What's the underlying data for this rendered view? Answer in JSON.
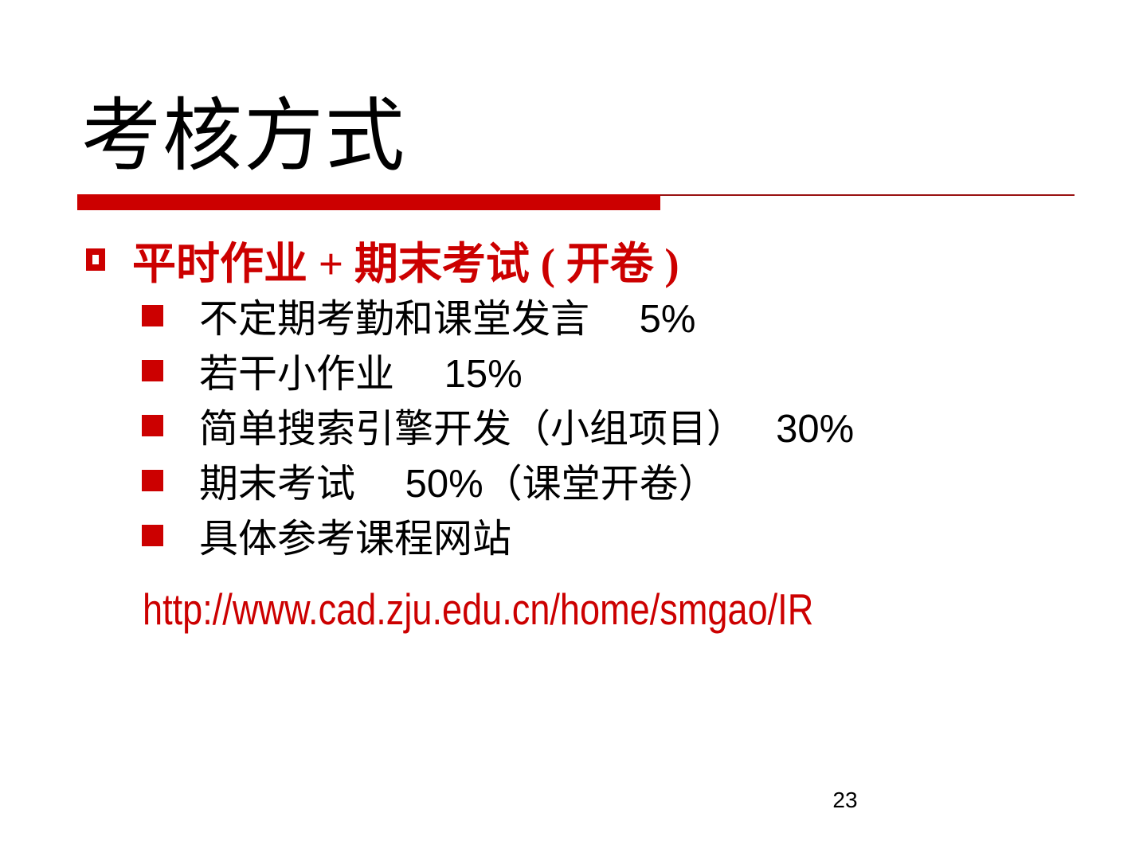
{
  "slide": {
    "title": "考核方式",
    "heading": "平时作业 + 期末考试 ( 开卷 )",
    "bullets": [
      "不定期考勤和课堂发言　 5%",
      "若干小作业　 15%",
      "简单搜索引擎开发（小组项目）　 30%",
      "期末考试　 50%（课堂开卷）",
      "具体参考课程网站"
    ],
    "url": "http://www.cad.zju.edu.cn/home/smgao/IR",
    "page_number": "23",
    "colors": {
      "accent_red": "#cc0000",
      "thin_rule_red": "#991111",
      "text_black": "#000000",
      "background": "#ffffff"
    }
  }
}
